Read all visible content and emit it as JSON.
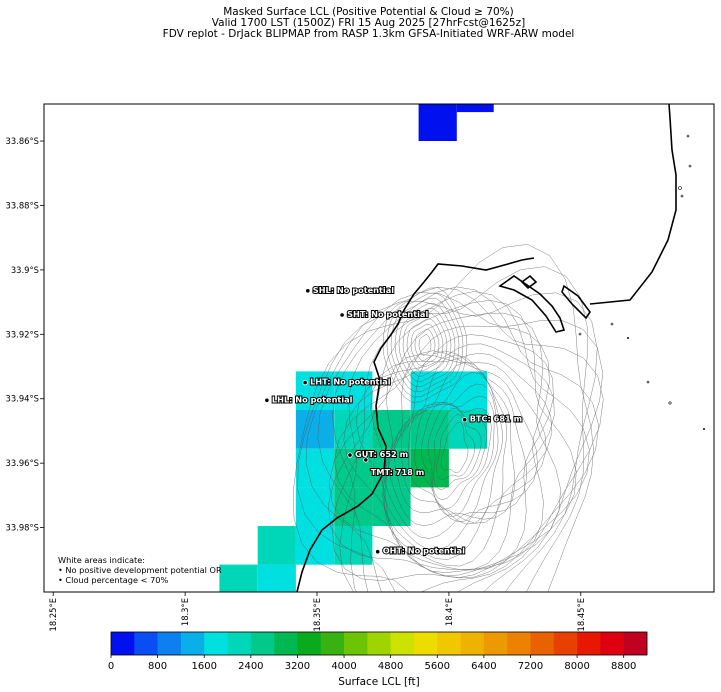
{
  "header": {
    "title_line1": "Masked Surface LCL (Positive Potential & Cloud ≥ 70%)",
    "title_line2": "Valid 1700 LST (1500Z) FRI 15 Aug 2025 [27hrFcst@1625z]",
    "title_line3": "FDV replot - DrJack BLIPMAP from RASP 1.3km GFSA-Initiated WRF-ARW model"
  },
  "map": {
    "lat_ticks": [
      "33.86°S",
      "33.88°S",
      "33.9°S",
      "33.92°S",
      "33.94°S",
      "33.96°S",
      "33.98°S"
    ],
    "lon_ticks": [
      "18.25°E",
      "18.3°E",
      "18.35°E",
      "18.4°E",
      "18.45°E"
    ],
    "stations": [
      {
        "name": "SHL: No potential",
        "lon": 18.3465,
        "lat": -33.9065
      },
      {
        "name": "SHT: No potential",
        "lon": 18.3595,
        "lat": -33.914
      },
      {
        "name": "LHT: No potential",
        "lon": 18.3455,
        "lat": -33.935
      },
      {
        "name": "LHL: No potential",
        "lon": 18.331,
        "lat": -33.9405
      },
      {
        "name": "BTC: 681 m",
        "lon": 18.406,
        "lat": -33.9465
      },
      {
        "name": "GUT: 652 m",
        "lon": 18.3625,
        "lat": -33.9575
      },
      {
        "name": "TMT: 718 m",
        "lon": 18.3685,
        "lat": -33.959
      },
      {
        "name": "OHT: No potential",
        "lon": 18.373,
        "lat": -33.9875
      }
    ],
    "cells": [
      {
        "lon0": 18.3885,
        "lon1": 18.403,
        "lat0": -33.8485,
        "lat1": -33.86,
        "lcl": 100
      },
      {
        "lon0": 18.403,
        "lon1": 18.417,
        "lat0": -33.8485,
        "lat1": -33.851,
        "lcl": 100
      },
      {
        "lon0": 18.342,
        "lon1": 18.3565,
        "lat0": -33.9315,
        "lat1": -33.9435,
        "lcl": 1800
      },
      {
        "lon0": 18.3565,
        "lon1": 18.371,
        "lat0": -33.9315,
        "lat1": -33.9435,
        "lcl": 1800
      },
      {
        "lon0": 18.3855,
        "lon1": 18.4,
        "lat0": -33.9315,
        "lat1": -33.9435,
        "lcl": 1800
      },
      {
        "lon0": 18.4,
        "lon1": 18.4145,
        "lat0": -33.9315,
        "lat1": -33.9435,
        "lcl": 1800
      },
      {
        "lon0": 18.342,
        "lon1": 18.3565,
        "lat0": -33.9435,
        "lat1": -33.9555,
        "lcl": 1300
      },
      {
        "lon0": 18.3565,
        "lon1": 18.371,
        "lat0": -33.9435,
        "lat1": -33.9555,
        "lcl": 2100
      },
      {
        "lon0": 18.371,
        "lon1": 18.3855,
        "lat0": -33.9435,
        "lat1": -33.9555,
        "lcl": 2550
      },
      {
        "lon0": 18.3855,
        "lon1": 18.4,
        "lat0": -33.9435,
        "lat1": -33.9555,
        "lcl": 2650
      },
      {
        "lon0": 18.4,
        "lon1": 18.4145,
        "lat0": -33.9435,
        "lat1": -33.9555,
        "lcl": 2300
      },
      {
        "lon0": 18.342,
        "lon1": 18.3565,
        "lat0": -33.9555,
        "lat1": -33.9675,
        "lcl": 1800
      },
      {
        "lon0": 18.3565,
        "lon1": 18.371,
        "lat0": -33.9555,
        "lat1": -33.9675,
        "lcl": 2450
      },
      {
        "lon0": 18.371,
        "lon1": 18.3855,
        "lat0": -33.9555,
        "lat1": -33.9675,
        "lcl": 2500
      },
      {
        "lon0": 18.3855,
        "lon1": 18.4,
        "lat0": -33.9555,
        "lat1": -33.9675,
        "lcl": 3050
      },
      {
        "lon0": 18.342,
        "lon1": 18.3565,
        "lat0": -33.9675,
        "lat1": -33.9795,
        "lcl": 1800
      },
      {
        "lon0": 18.3565,
        "lon1": 18.371,
        "lat0": -33.9675,
        "lat1": -33.9795,
        "lcl": 2550
      },
      {
        "lon0": 18.371,
        "lon1": 18.3855,
        "lat0": -33.9675,
        "lat1": -33.9795,
        "lcl": 2550
      },
      {
        "lon0": 18.3275,
        "lon1": 18.342,
        "lat0": -33.9795,
        "lat1": -33.9915,
        "lcl": 2050
      },
      {
        "lon0": 18.342,
        "lon1": 18.3565,
        "lat0": -33.9795,
        "lat1": -33.9915,
        "lcl": 1900
      },
      {
        "lon0": 18.3565,
        "lon1": 18.371,
        "lat0": -33.9795,
        "lat1": -33.9915,
        "lcl": 2200
      },
      {
        "lon0": 18.313,
        "lon1": 18.3275,
        "lat0": -33.9915,
        "lat1": -34.0,
        "lcl": 2050
      },
      {
        "lon0": 18.3275,
        "lon1": 18.342,
        "lat0": -33.9915,
        "lat1": -34.0,
        "lcl": 1800
      }
    ]
  },
  "notes": {
    "line1": "White areas indicate:",
    "line2": "• No positive development potential OR",
    "line3": "• Cloud percentage < 70%"
  },
  "colorbar": {
    "label": "Surface LCL [ft]",
    "tick_labels": [
      "0",
      "800",
      "1600",
      "2400",
      "3200",
      "4000",
      "4800",
      "5600",
      "6400",
      "7200",
      "8000",
      "8800"
    ],
    "min": 0,
    "max": 9200,
    "step": 400,
    "colors": [
      "#0010ef",
      "#0a4ef3",
      "#0c80ee",
      "#0aafea",
      "#00e0e0",
      "#00d6b8",
      "#00c98a",
      "#00b850",
      "#0aaa1e",
      "#38b210",
      "#6cc404",
      "#a0d400",
      "#cce200",
      "#ecdc00",
      "#f0c800",
      "#eeb200",
      "#ec9a00",
      "#ec8200",
      "#e86200",
      "#e84000",
      "#e61800",
      "#de0010",
      "#c00020"
    ]
  }
}
